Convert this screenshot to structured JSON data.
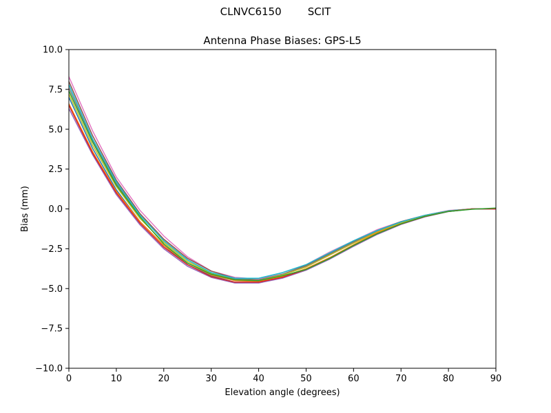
{
  "suptitle": "CLNVC6150        SCIT",
  "chart_data": {
    "type": "line",
    "title": "Antenna Phase Biases: GPS-L5",
    "xlabel": "Elevation angle (degrees)",
    "ylabel": "Bias (mm)",
    "xlim": [
      0,
      90
    ],
    "ylim": [
      -10,
      10
    ],
    "xticks": [
      0,
      10,
      20,
      30,
      40,
      50,
      60,
      70,
      80,
      90
    ],
    "xtick_labels": [
      "0",
      "10",
      "20",
      "30",
      "40",
      "50",
      "60",
      "70",
      "80",
      "90"
    ],
    "yticks": [
      -10,
      -7.5,
      -5,
      -2.5,
      0,
      2.5,
      5,
      7.5,
      10
    ],
    "ytick_labels": [
      "−10.0",
      "−7.5",
      "−5.0",
      "−2.5",
      "0.0",
      "2.5",
      "5.0",
      "7.5",
      "10.0"
    ],
    "grid": false,
    "x": [
      0,
      5,
      10,
      15,
      20,
      25,
      30,
      35,
      40,
      45,
      50,
      55,
      60,
      65,
      70,
      75,
      80,
      85,
      90
    ],
    "series": [
      {
        "color": "#e377c2",
        "values": [
          8.3,
          4.9,
          2.0,
          -0.1,
          -1.7,
          -3.0,
          -3.9,
          -4.3,
          -4.4,
          -4.0,
          -3.5,
          -2.7,
          -2.0,
          -1.3,
          -0.8,
          -0.4,
          -0.1,
          0.0,
          0.0
        ]
      },
      {
        "color": "#8c564b",
        "values": [
          8.0,
          4.6,
          1.8,
          -0.3,
          -1.9,
          -3.1,
          -3.9,
          -4.35,
          -4.45,
          -4.1,
          -3.55,
          -2.8,
          -2.05,
          -1.35,
          -0.8,
          -0.4,
          -0.12,
          0.0,
          0.0
        ]
      },
      {
        "color": "#7f7f7f",
        "values": [
          7.6,
          4.3,
          1.6,
          -0.4,
          -2.0,
          -3.2,
          -4.0,
          -4.4,
          -4.45,
          -4.1,
          -3.6,
          -2.85,
          -2.1,
          -1.4,
          -0.85,
          -0.42,
          -0.13,
          0.0,
          0.0
        ]
      },
      {
        "color": "#bcbd22",
        "values": [
          7.2,
          4.0,
          1.4,
          -0.6,
          -2.1,
          -3.3,
          -4.05,
          -4.45,
          -4.5,
          -4.15,
          -3.65,
          -2.9,
          -2.15,
          -1.45,
          -0.88,
          -0.44,
          -0.14,
          0.0,
          0.0
        ]
      },
      {
        "color": "#17becf",
        "values": [
          7.8,
          4.4,
          1.7,
          -0.4,
          -2.0,
          -3.2,
          -4.0,
          -4.35,
          -4.35,
          -4.0,
          -3.5,
          -2.75,
          -2.0,
          -1.35,
          -0.82,
          -0.4,
          -0.12,
          0.0,
          0.0
        ]
      },
      {
        "color": "#1f77b4",
        "values": [
          7.0,
          3.8,
          1.2,
          -0.8,
          -2.3,
          -3.5,
          -4.2,
          -4.6,
          -4.6,
          -4.3,
          -3.8,
          -3.1,
          -2.3,
          -1.55,
          -0.95,
          -0.48,
          -0.16,
          0.0,
          0.0
        ]
      },
      {
        "color": "#ff7f0e",
        "values": [
          6.6,
          3.6,
          1.1,
          -0.8,
          -2.3,
          -3.4,
          -4.15,
          -4.5,
          -4.55,
          -4.25,
          -3.75,
          -3.05,
          -2.25,
          -1.5,
          -0.92,
          -0.46,
          -0.15,
          0.0,
          0.0
        ]
      },
      {
        "color": "#9467bd",
        "values": [
          6.3,
          3.4,
          0.9,
          -1.0,
          -2.5,
          -3.6,
          -4.3,
          -4.65,
          -4.65,
          -4.35,
          -3.85,
          -3.15,
          -2.35,
          -1.6,
          -0.97,
          -0.5,
          -0.17,
          0.0,
          0.0
        ]
      },
      {
        "color": "#d62728",
        "values": [
          6.5,
          3.5,
          1.0,
          -0.9,
          -2.4,
          -3.5,
          -4.25,
          -4.6,
          -4.6,
          -4.3,
          -3.8,
          -3.1,
          -2.3,
          -1.55,
          -0.95,
          -0.48,
          -0.16,
          0.0,
          0.0
        ]
      },
      {
        "color": "#2ca02c",
        "values": [
          7.4,
          4.2,
          1.5,
          -0.5,
          -2.2,
          -3.4,
          -4.1,
          -4.45,
          -4.5,
          -4.2,
          -3.8,
          -3.1,
          -2.3,
          -1.55,
          -0.94,
          -0.47,
          -0.16,
          -0.02,
          0.05
        ]
      }
    ]
  }
}
